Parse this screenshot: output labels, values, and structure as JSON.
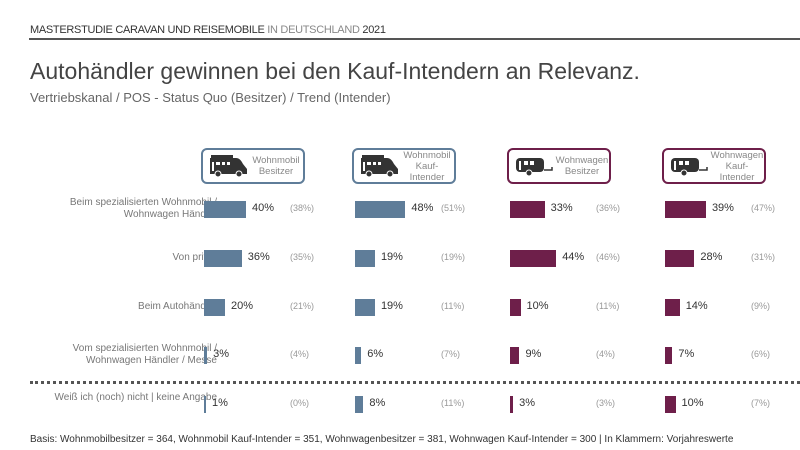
{
  "header": {
    "supertitle_bold": "MASTERSTUDIE CARAVAN UND REISEMOBILE",
    "supertitle_light": "IN DEUTSCHLAND",
    "supertitle_year": "2021",
    "title": "Autohändler gewinnen bei den Kauf-Intendern an Relevanz.",
    "subtitle": "Vertriebskanal / POS - Status Quo (Besitzer) / Trend (Intender)"
  },
  "footer": "Basis: Wohnmobilbesitzer = 364, Wohnmobil Kauf-Intender = 351, Wohnwagenbesitzer = 381, Wohnwagen Kauf-Intender = 300 | In Klammern: Vorjahreswerte",
  "chart_data": {
    "type": "bar",
    "categories": [
      "Beim spezialisierten Wohnmobil / Wohnwagen Händler",
      "Von privat",
      "Beim Autohändler",
      "Vom spezialisierten Wohnmobil / Wohnwagen Händler / Messe",
      "Weiß ich (noch) nicht | keine Angabe"
    ],
    "series": [
      {
        "name": "Wohnmobil Besitzer",
        "line1": "Wohnmobil",
        "line2": "Besitzer",
        "icon": "motorhome-icon",
        "color": "#5f7d99",
        "values": [
          40,
          36,
          20,
          3,
          1
        ],
        "previous": [
          38,
          35,
          21,
          4,
          0
        ]
      },
      {
        "name": "Wohnmobil Kauf-Intender",
        "line1": "Wohnmobil",
        "line2": "Kauf-Intender",
        "icon": "motorhome-icon",
        "color": "#5f7d99",
        "values": [
          48,
          19,
          19,
          6,
          8
        ],
        "previous": [
          51,
          19,
          11,
          7,
          11
        ]
      },
      {
        "name": "Wohnwagen Besitzer",
        "line1": "Wohnwagen",
        "line2": "Besitzer",
        "icon": "caravan-icon",
        "color": "#6e1f4a",
        "values": [
          33,
          44,
          10,
          9,
          3
        ],
        "previous": [
          36,
          46,
          11,
          4,
          3
        ]
      },
      {
        "name": "Wohnwagen Kauf-Intender",
        "line1": "Wohnwagen",
        "line2": "Kauf-Intender",
        "icon": "caravan-icon",
        "color": "#6e1f4a",
        "values": [
          39,
          28,
          14,
          7,
          10
        ],
        "previous": [
          47,
          31,
          9,
          6,
          7
        ]
      }
    ],
    "unit": "%"
  }
}
